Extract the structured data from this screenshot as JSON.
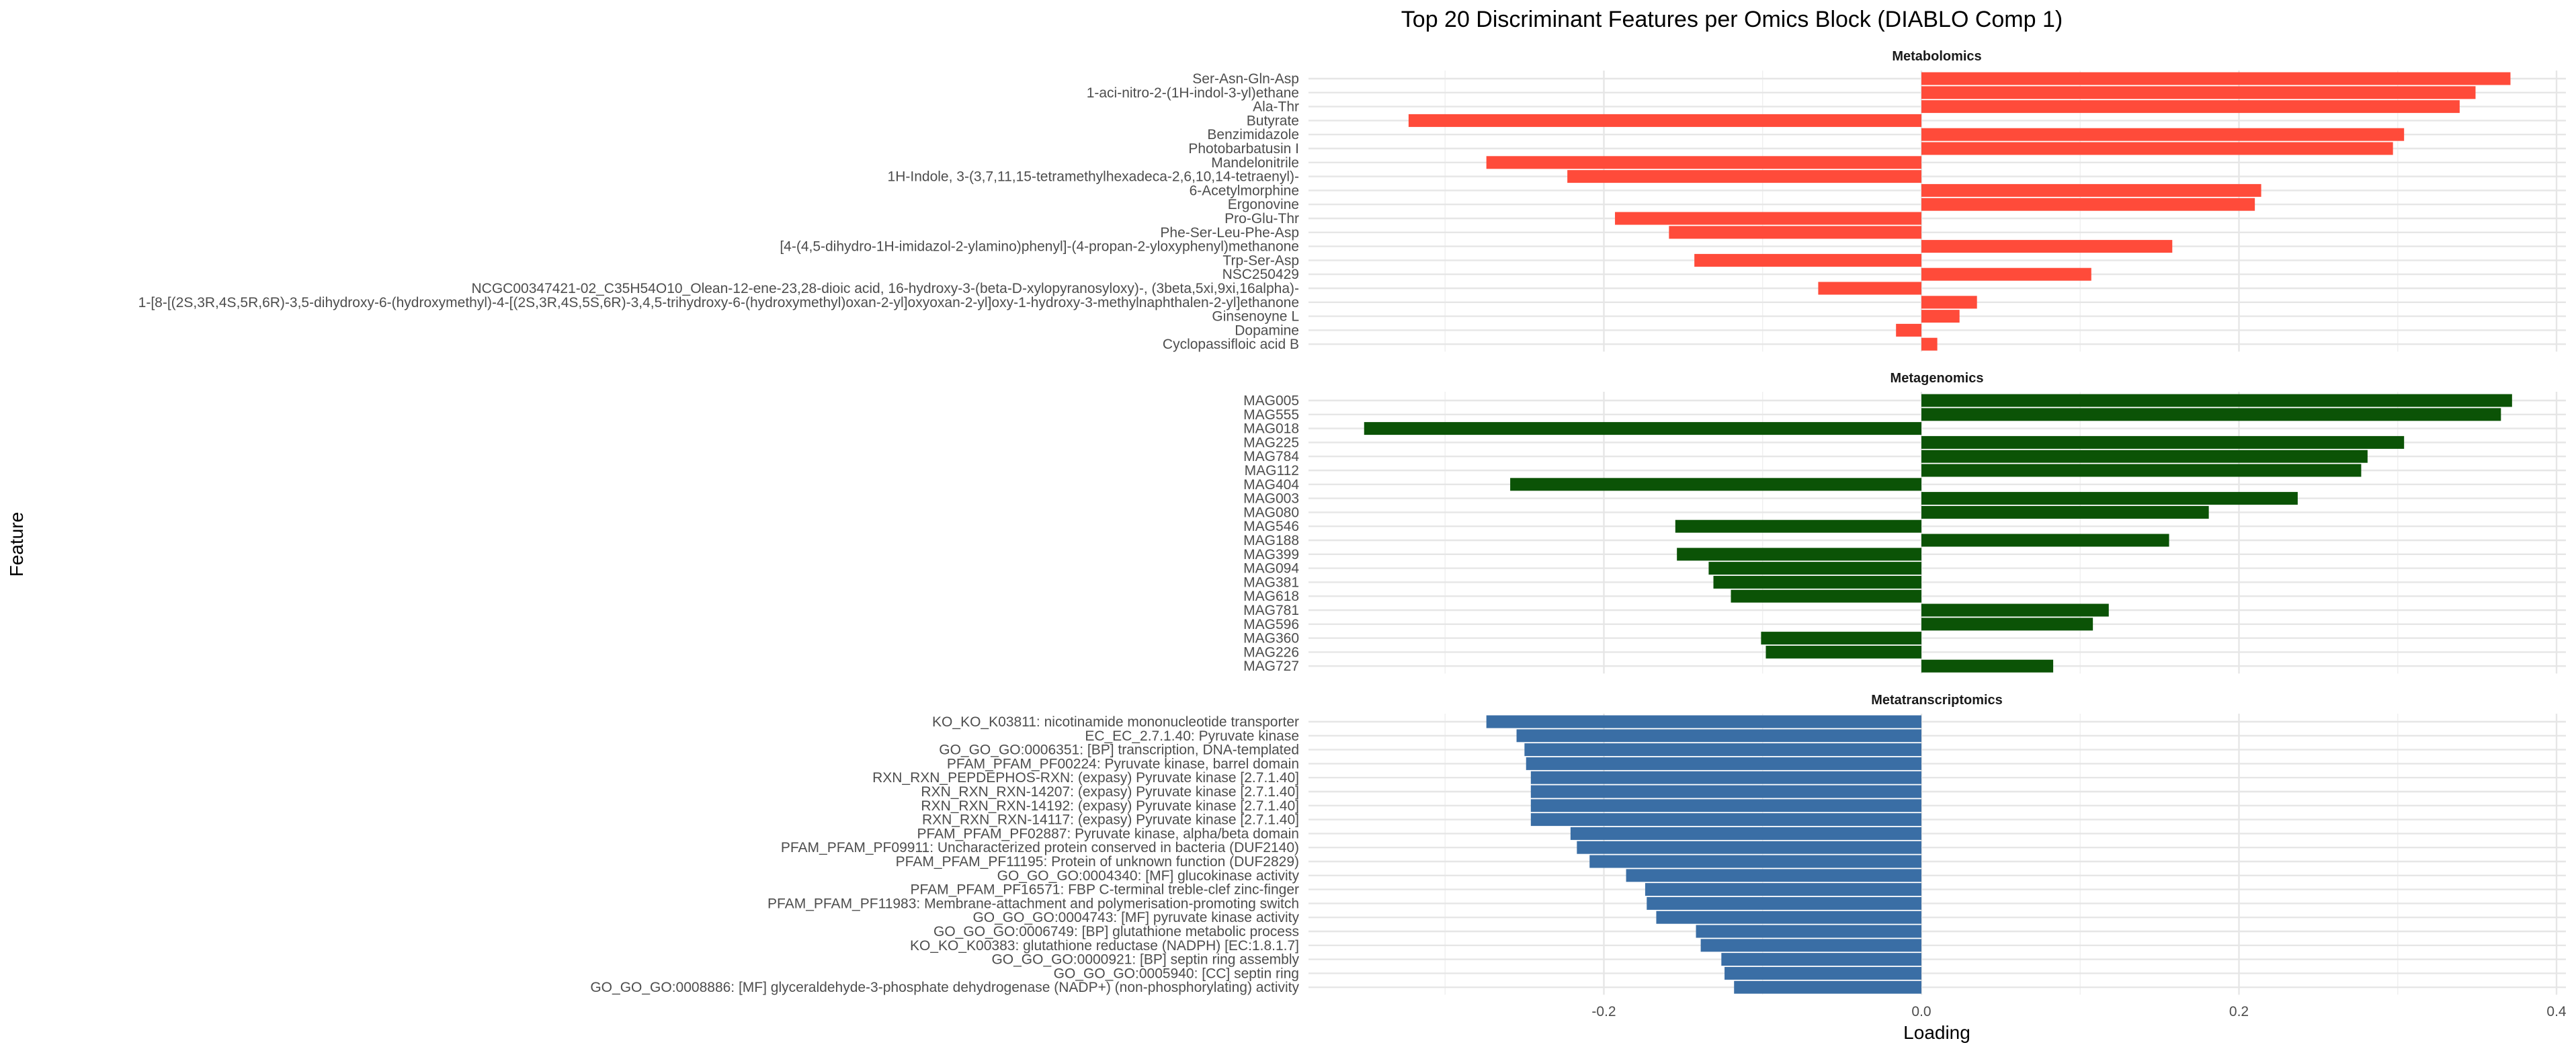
{
  "chart_data": {
    "type": "bar",
    "orientation": "horizontal",
    "title": "Top 20 Discriminant Features per Omics Block (DIABLO Comp 1)",
    "xlabel": "Loading",
    "ylabel": "Feature",
    "xlim": [
      -0.37,
      0.41
    ],
    "xticks": [
      -0.2,
      0.0,
      0.2,
      0.4
    ],
    "xtick_labels": [
      "-0.2",
      "0.0",
      "0.2",
      "0.4"
    ],
    "grid": true,
    "legend": "none",
    "panels": [
      {
        "name": "Metabolomics",
        "color": "#FF4B3A",
        "features": [
          "Ser-Asn-Gln-Asp",
          "1-aci-nitro-2-(1H-indol-3-yl)ethane",
          "Ala-Thr",
          "Butyrate",
          "Benzimidazole",
          "Photobarbatusin I",
          "Mandelonitrile",
          "1H-Indole, 3-(3,7,11,15-tetramethylhexadeca-2,6,10,14-tetraenyl)-",
          "6-Acetylmorphine",
          "Ergonovine",
          "Pro-Glu-Thr",
          "Phe-Ser-Leu-Phe-Asp",
          "[4-(4,5-dihydro-1H-imidazol-2-ylamino)phenyl]-(4-propan-2-yloxyphenyl)methanone",
          "Trp-Ser-Asp",
          "NSC250429",
          "NCGC00347421-02_C35H54O10_Olean-12-ene-23,28-dioic acid, 16-hydroxy-3-(beta-D-xylopyranosyloxy)-, (3beta,5xi,9xi,16alpha)-",
          "1-[8-[(2S,3R,4S,5R,6R)-3,5-dihydroxy-6-(hydroxymethyl)-4-[(2S,3R,4S,5S,6R)-3,4,5-trihydroxy-6-(hydroxymethyl)oxan-2-yl]oxyoxan-2-yl]oxy-1-hydroxy-3-methylnaphthalen-2-yl]ethanone",
          "Ginsenoyne L",
          "Dopamine",
          "Cyclopassifloic acid B"
        ],
        "values": [
          0.371,
          0.349,
          0.339,
          -0.323,
          0.304,
          0.297,
          -0.274,
          -0.223,
          0.214,
          0.21,
          -0.193,
          -0.159,
          0.158,
          -0.143,
          0.107,
          -0.065,
          0.035,
          0.024,
          -0.016,
          0.01
        ]
      },
      {
        "name": "Metagenomics",
        "color": "#0B5306",
        "features": [
          "MAG005",
          "MAG555",
          "MAG018",
          "MAG225",
          "MAG784",
          "MAG112",
          "MAG404",
          "MAG003",
          "MAG080",
          "MAG546",
          "MAG188",
          "MAG399",
          "MAG094",
          "MAG381",
          "MAG618",
          "MAG781",
          "MAG596",
          "MAG360",
          "MAG226",
          "MAG727"
        ],
        "values": [
          0.372,
          0.365,
          -0.351,
          0.304,
          0.281,
          0.277,
          -0.259,
          0.237,
          0.181,
          -0.155,
          0.156,
          -0.154,
          -0.134,
          -0.131,
          -0.12,
          0.118,
          0.108,
          -0.101,
          -0.098,
          0.083
        ]
      },
      {
        "name": "Metatranscriptomics",
        "color": "#3A6EA5",
        "features": [
          "KO_KO_K03811: nicotinamide mononucleotide transporter",
          "EC_EC_2.7.1.40: Pyruvate kinase",
          "GO_GO_GO:0006351: [BP] transcription, DNA-templated",
          "PFAM_PFAM_PF00224: Pyruvate kinase, barrel domain",
          "RXN_RXN_PEPDEPHOS-RXN: (expasy) Pyruvate kinase [2.7.1.40]",
          "RXN_RXN_RXN-14207: (expasy) Pyruvate kinase [2.7.1.40]",
          "RXN_RXN_RXN-14192: (expasy) Pyruvate kinase [2.7.1.40]",
          "RXN_RXN_RXN-14117: (expasy) Pyruvate kinase [2.7.1.40]",
          "PFAM_PFAM_PF02887: Pyruvate kinase, alpha/beta domain",
          "PFAM_PFAM_PF09911: Uncharacterized protein conserved in bacteria (DUF2140)",
          "PFAM_PFAM_PF11195: Protein of unknown function (DUF2829)",
          "GO_GO_GO:0004340: [MF] glucokinase activity",
          "PFAM_PFAM_PF16571: FBP C-terminal treble-clef zinc-finger",
          "PFAM_PFAM_PF11983: Membrane-attachment and polymerisation-promoting switch",
          "GO_GO_GO:0004743: [MF] pyruvate kinase activity",
          "GO_GO_GO:0006749: [BP] glutathione metabolic process",
          "KO_KO_K00383: glutathione reductase (NADPH) [EC:1.8.1.7]",
          "GO_GO_GO:0000921: [BP] septin ring assembly",
          "GO_GO_GO:0005940: [CC] septin ring",
          "GO_GO_GO:0008886: [MF] glyceraldehyde-3-phosphate dehydrogenase (NADP+) (non-phosphorylating) activity"
        ],
        "values": [
          -0.274,
          -0.255,
          -0.25,
          -0.249,
          -0.246,
          -0.246,
          -0.246,
          -0.246,
          -0.221,
          -0.217,
          -0.209,
          -0.186,
          -0.174,
          -0.173,
          -0.167,
          -0.142,
          -0.139,
          -0.126,
          -0.124,
          -0.118
        ]
      }
    ]
  }
}
